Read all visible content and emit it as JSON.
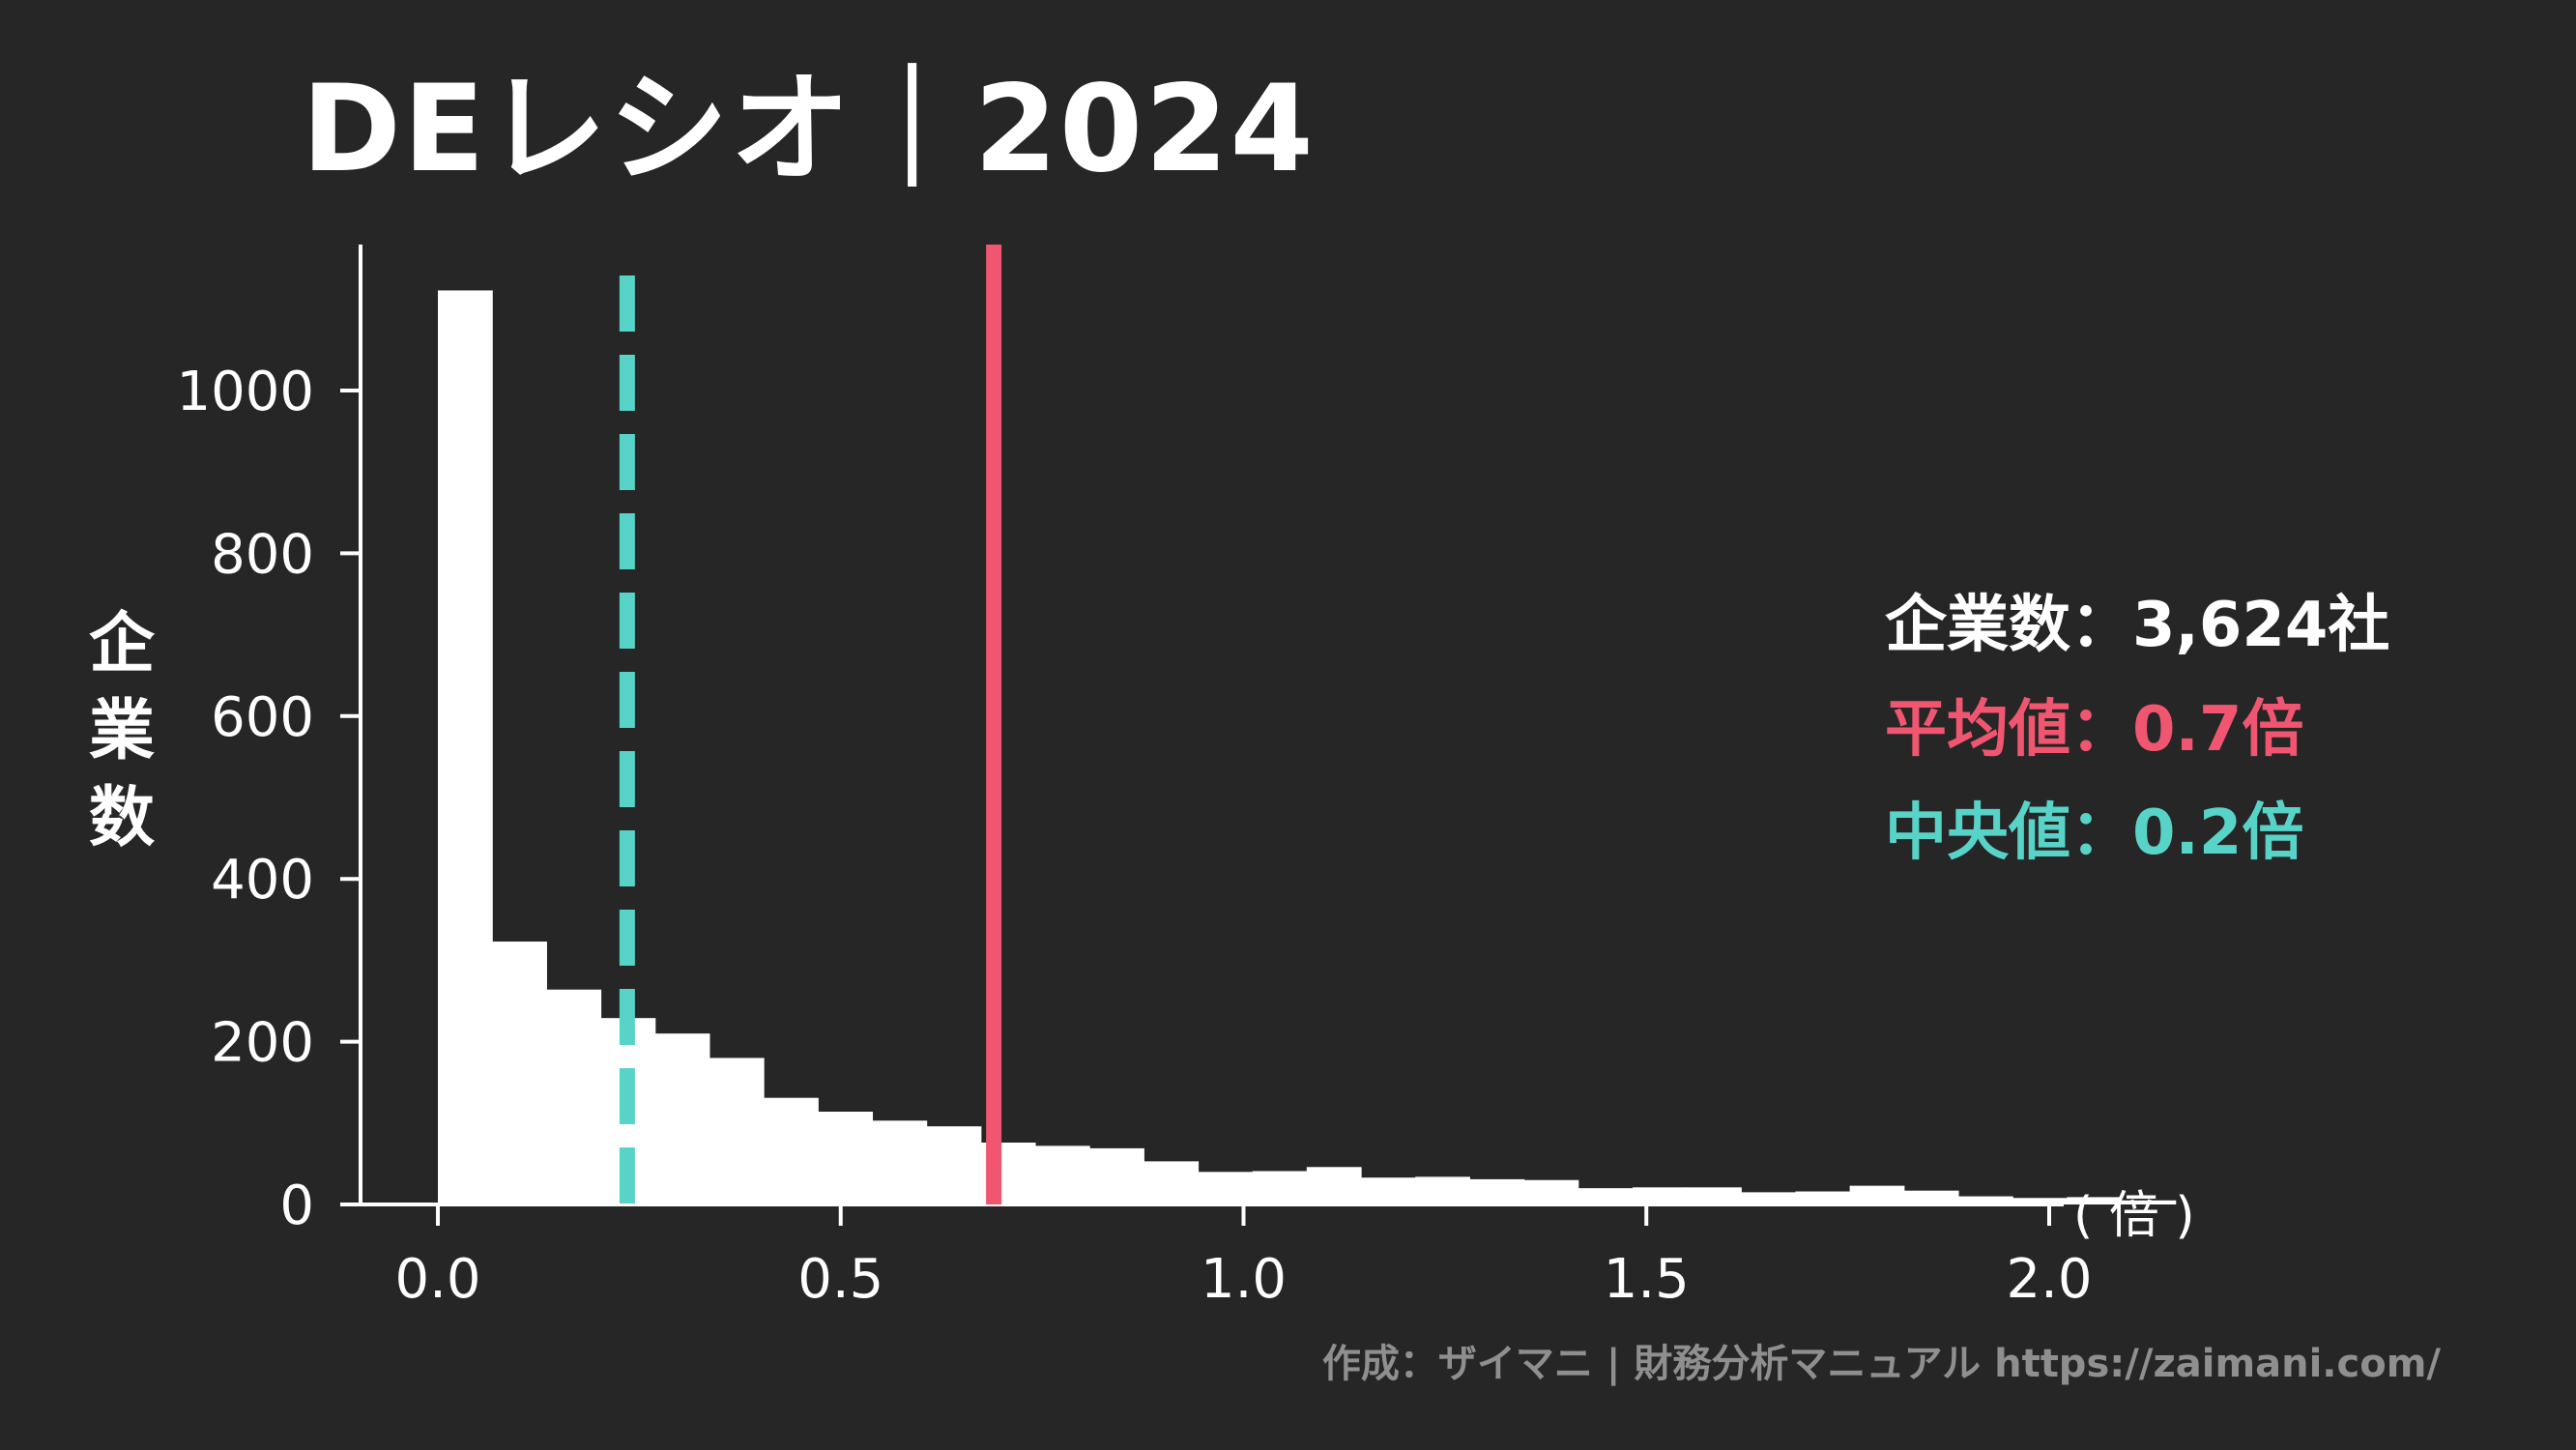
{
  "title": "DEレシオ｜2024",
  "colors": {
    "background": "#262626",
    "bars": "#ffffff",
    "mean": "#f0566f",
    "median": "#58d3c8",
    "text": "#ffffff",
    "credit": "#8f8f8f"
  },
  "y_axis_label": "企業数",
  "x_axis_unit": "( 倍 )",
  "stats": {
    "companies": "企業数：3,624社",
    "mean": "平均値：0.7倍",
    "median": "中央値：0.2倍"
  },
  "credit": "作成：ザイマニ | 財務分析マニュアル https://zaimani.com/",
  "chart_data": {
    "type": "bar",
    "title": "DEレシオ｜2024",
    "xlabel": "( 倍 )",
    "ylabel": "企業数",
    "xlim": [
      -0.11,
      2.2
    ],
    "ylim": [
      0,
      1180
    ],
    "x_ticks": [
      0.0,
      0.5,
      1.0,
      1.5,
      2.0
    ],
    "x_tick_labels": [
      "0.0",
      "0.5",
      "1.0",
      "1.5",
      "2.0"
    ],
    "y_ticks": [
      0,
      200,
      400,
      600,
      800,
      1000
    ],
    "y_tick_labels": [
      "0",
      "200",
      "400",
      "600",
      "800",
      "1000"
    ],
    "bin_width": 0.0674,
    "bins_start": 0.0,
    "values": [
      1123,
      323,
      264,
      229,
      210,
      180,
      131,
      114,
      103,
      96,
      76,
      72,
      69,
      53,
      40,
      41,
      46,
      33,
      34,
      31,
      30,
      20,
      21,
      21,
      15,
      16,
      23,
      17,
      10,
      8,
      9,
      5
    ],
    "mean": 0.69,
    "median": 0.235,
    "grid": false
  }
}
